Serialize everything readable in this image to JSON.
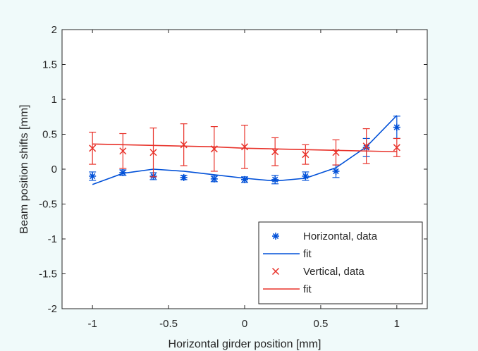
{
  "chart_data": {
    "type": "scatter",
    "title": "",
    "xlabel": "Horizontal girder position [mm]",
    "ylabel": "Beam position shifts [mm]",
    "xlim": [
      -1.2,
      1.2
    ],
    "ylim": [
      -2,
      2
    ],
    "xticks": [
      -1,
      -0.5,
      0,
      0.5,
      1
    ],
    "xtick_labels": [
      "-1",
      "-0.5",
      "0",
      "0.5",
      "1"
    ],
    "yticks": [
      -2,
      -1.5,
      -1,
      -0.5,
      0,
      0.5,
      1,
      1.5,
      2
    ],
    "ytick_labels": [
      "-2",
      "-1.5",
      "-1",
      "-0.5",
      "0",
      "0.5",
      "1",
      "1.5",
      "2"
    ],
    "grid": false,
    "legend_position": "bottom-right",
    "x": [
      -1,
      -0.8,
      -0.6,
      -0.4,
      -0.2,
      0,
      0.2,
      0.4,
      0.6,
      0.8,
      1
    ],
    "series": [
      {
        "name": "Horizontal, data",
        "kind": "errorbar",
        "marker": "asterisk",
        "color": "#0050d8",
        "values": [
          -0.1,
          -0.05,
          -0.1,
          -0.12,
          -0.14,
          -0.15,
          -0.15,
          -0.1,
          -0.03,
          0.31,
          0.6
        ],
        "errors": [
          0.06,
          0.04,
          0.05,
          0.03,
          0.04,
          0.04,
          0.06,
          0.06,
          0.09,
          0.13,
          0.16
        ]
      },
      {
        "name": "fit",
        "kind": "line",
        "color": "#0050d8",
        "values": [
          -0.22,
          -0.06,
          0.0,
          -0.03,
          -0.08,
          -0.13,
          -0.17,
          -0.13,
          0.02,
          0.32,
          0.77
        ]
      },
      {
        "name": "Vertical, data",
        "kind": "errorbar",
        "marker": "x",
        "color": "#e8322a",
        "values": [
          0.3,
          0.26,
          0.24,
          0.35,
          0.29,
          0.32,
          0.25,
          0.21,
          0.24,
          0.33,
          0.31
        ],
        "errors": [
          0.23,
          0.25,
          0.35,
          0.3,
          0.32,
          0.31,
          0.2,
          0.14,
          0.18,
          0.25,
          0.13
        ]
      },
      {
        "name": "fit",
        "kind": "line",
        "color": "#e8322a",
        "values": [
          0.36,
          0.35,
          0.34,
          0.33,
          0.32,
          0.3,
          0.29,
          0.28,
          0.27,
          0.26,
          0.25
        ]
      }
    ]
  }
}
